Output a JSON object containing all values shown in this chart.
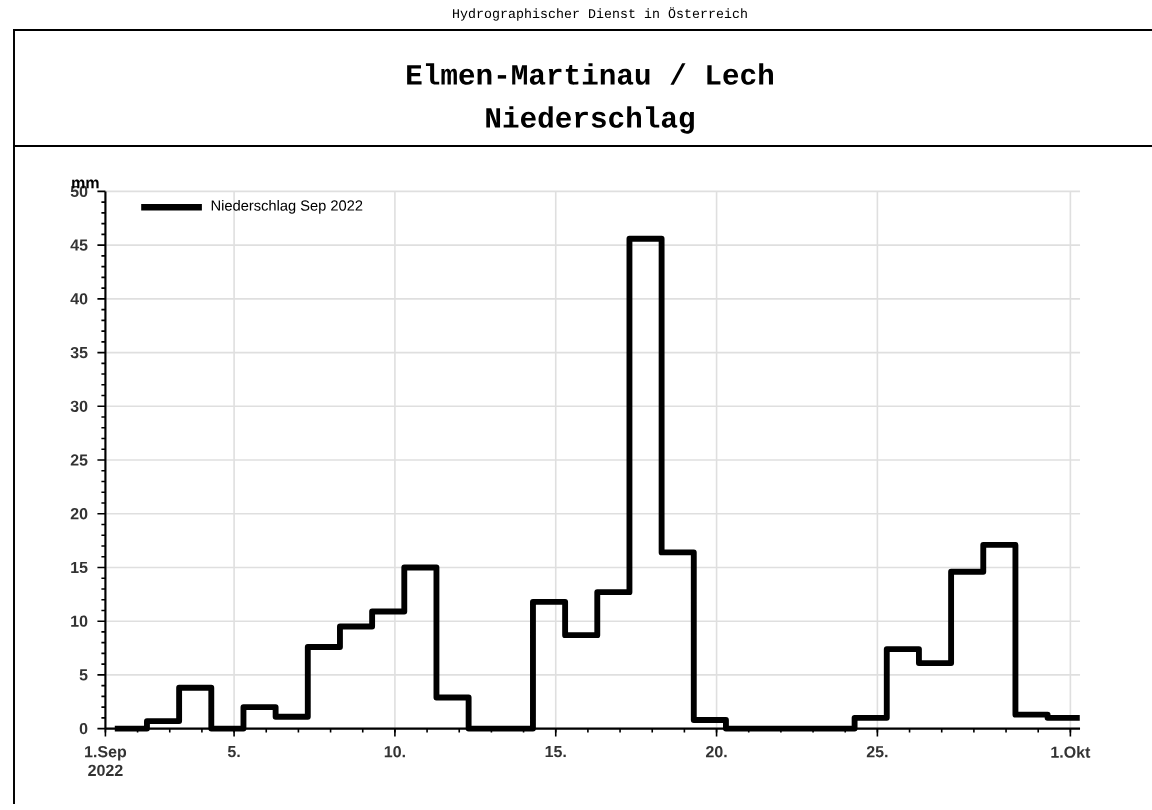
{
  "chart_data": {
    "type": "step",
    "title": "Elmen-Martinau / Lech",
    "subtitle": "Niederschlag",
    "ylabel": "mm",
    "annotations": [
      "Hydrographischer Dienst in Österreich"
    ],
    "x": [
      "2022-09-01T07:00",
      "2022-09-02T07:00",
      "2022-09-03T07:00",
      "2022-09-04T07:00",
      "2022-09-05T07:00",
      "2022-09-06T07:00",
      "2022-09-07T07:00",
      "2022-09-08T07:00",
      "2022-09-09T07:00",
      "2022-09-10T07:00",
      "2022-09-11T07:00",
      "2022-09-12T07:00",
      "2022-09-13T07:00",
      "2022-09-14T07:00",
      "2022-09-15T07:00",
      "2022-09-16T07:00",
      "2022-09-17T07:00",
      "2022-09-18T07:00",
      "2022-09-19T07:00",
      "2022-09-20T07:00",
      "2022-09-21T07:00",
      "2022-09-22T07:00",
      "2022-09-23T07:00",
      "2022-09-24T07:00",
      "2022-09-25T07:00",
      "2022-09-26T07:00",
      "2022-09-27T07:00",
      "2022-09-28T07:00",
      "2022-09-29T07:00",
      "2022-09-30T07:00",
      "2022-10-01T07:00"
    ],
    "series": [
      {
        "name": "Niederschlag Sep 2022",
        "color": "#000000",
        "values": [
          0,
          0.7,
          3.8,
          0,
          2.0,
          1.1,
          7.6,
          9.5,
          10.9,
          15.0,
          2.9,
          0,
          0,
          11.8,
          8.7,
          12.7,
          45.6,
          16.4,
          0.8,
          0,
          0,
          0,
          0,
          1.0,
          7.4,
          6.1,
          14.6,
          17.1,
          1.3,
          1.0,
          1.0
        ]
      }
    ],
    "xlim": [
      "2022-09-01",
      "2022-10-01T07:12"
    ],
    "xticks": [
      {
        "value": "2022-09-01",
        "label": "1.Sep 2022"
      },
      {
        "value": "2022-09-05",
        "label": "5."
      },
      {
        "value": "2022-09-10",
        "label": "10."
      },
      {
        "value": "2022-09-15",
        "label": "15."
      },
      {
        "value": "2022-09-20",
        "label": "20."
      },
      {
        "value": "2022-09-25",
        "label": "25."
      },
      {
        "value": "2022-10-01",
        "label": "1.Okt"
      }
    ],
    "ylim": [
      0,
      50
    ],
    "yticks": [
      0,
      5,
      10,
      15,
      20,
      25,
      30,
      35,
      40,
      45,
      50
    ],
    "grid": true,
    "legend": "top left",
    "line_style": "solid"
  }
}
